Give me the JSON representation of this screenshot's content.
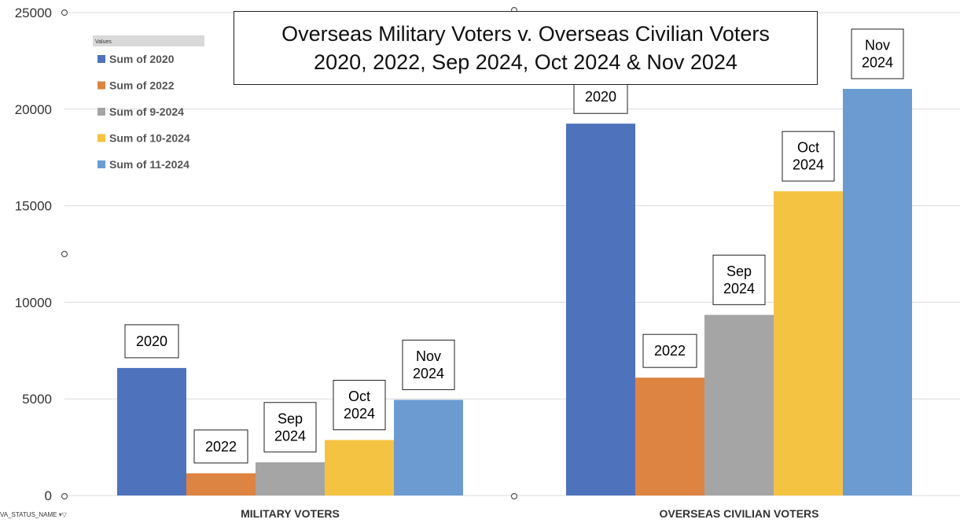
{
  "chart_data": {
    "type": "bar",
    "title": "Overseas Military Voters v. Overseas Civilian Voters",
    "subtitle": "2020, 2022, Sep 2024, Oct 2024 & Nov 2024",
    "categories": [
      "MILITARY VOTERS",
      "OVERSEAS CIVILIAN VOTERS"
    ],
    "series": [
      {
        "name": "Sum of 2020",
        "values": [
          6600,
          19250
        ],
        "color": "#4f72bd",
        "label_lines": [
          "2020"
        ]
      },
      {
        "name": "Sum of 2022",
        "values": [
          1150,
          6100
        ],
        "color": "#dd8442",
        "label_lines": [
          "2022"
        ]
      },
      {
        "name": "Sum of 9-2024",
        "values": [
          1720,
          9350
        ],
        "color": "#a5a5a5",
        "label_lines": [
          "Sep",
          "2024"
        ]
      },
      {
        "name": "Sum of 10-2024",
        "values": [
          2870,
          15750
        ],
        "color": "#f5c342",
        "label_lines": [
          "Oct",
          "2024"
        ]
      },
      {
        "name": "Sum of 11-2024",
        "values": [
          4950,
          21050
        ],
        "color": "#6b9bd1",
        "label_lines": [
          "Nov",
          "2024"
        ]
      }
    ],
    "ylim": [
      0,
      25000
    ],
    "yticks": [
      0,
      5000,
      10000,
      15000,
      20000,
      25000
    ],
    "xlabel": "",
    "ylabel": "",
    "grid": true,
    "legend": {
      "header": "Values",
      "placement": "top-left"
    }
  },
  "filter_field": {
    "label": "VA_STATUS_NAME",
    "icon": "filter-dropdown-icon"
  }
}
